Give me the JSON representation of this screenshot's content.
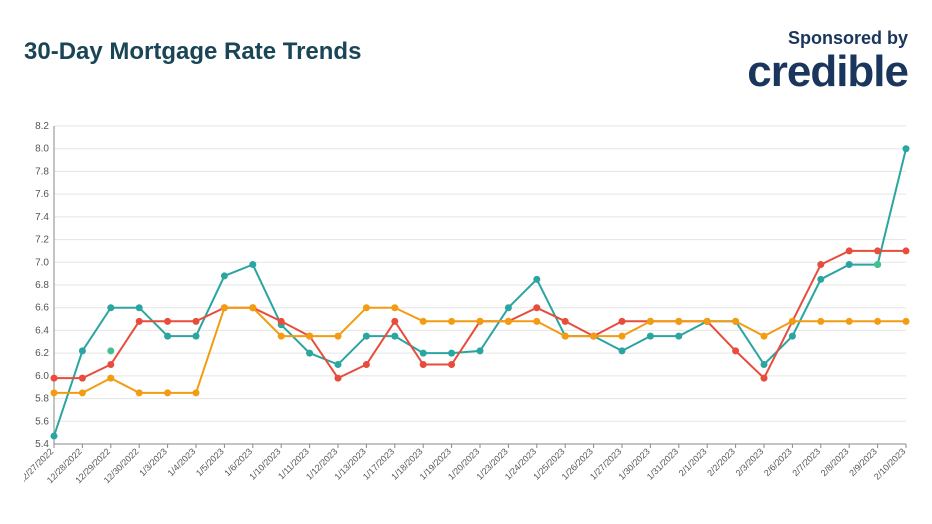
{
  "header": {
    "title": "30-Day Mortgage Rate Trends",
    "sponsor_label": "Sponsored by",
    "sponsor_logo": "credible"
  },
  "chart": {
    "type": "line",
    "background_color": "#ffffff",
    "grid_color": "#e5e5e5",
    "axis_color": "#888888",
    "title_color": "#1a4556",
    "title_fontsize": 24,
    "y_axis": {
      "min": 5.4,
      "max": 8.2,
      "ticks": [
        5.4,
        5.6,
        5.8,
        6.0,
        6.2,
        6.4,
        6.6,
        6.8,
        7.0,
        7.2,
        7.4,
        7.6,
        7.8,
        8.0,
        8.2
      ],
      "tick_fontsize": 10,
      "tick_color": "#555555"
    },
    "x_axis": {
      "categories": [
        "12/27/2022",
        "12/28/2022",
        "12/29/2022",
        "12/30/2022",
        "1/3/2023",
        "1/4/2023",
        "1/5/2023",
        "1/6/2023",
        "1/10/2023",
        "1/11/2023",
        "1/12/2023",
        "1/13/2023",
        "1/17/2023",
        "1/18/2023",
        "1/19/2023",
        "1/20/2023",
        "1/23/2023",
        "1/24/2023",
        "1/25/2023",
        "1/26/2023",
        "1/27/2023",
        "1/30/2023",
        "1/31/2023",
        "2/1/2023",
        "2/2/2023",
        "2/3/2023",
        "2/6/2023",
        "2/7/2023",
        "2/8/2023",
        "2/9/2023",
        "2/10/2023"
      ],
      "tick_fontsize": 9,
      "tick_color": "#555555",
      "label_rotation": -45
    },
    "series": [
      {
        "name": "series-teal",
        "color": "#2ba5a0",
        "line_width": 2,
        "marker": "circle",
        "marker_size": 3.5,
        "values": [
          5.47,
          6.22,
          6.6,
          6.6,
          6.35,
          6.35,
          6.88,
          6.98,
          6.45,
          6.2,
          6.1,
          6.35,
          6.35,
          6.2,
          6.2,
          6.22,
          6.6,
          6.85,
          6.35,
          6.35,
          6.22,
          6.35,
          6.35,
          6.48,
          6.48,
          6.1,
          6.35,
          6.85,
          6.98,
          6.98,
          8.0
        ]
      },
      {
        "name": "series-red",
        "color": "#e74c3c",
        "line_width": 2,
        "marker": "circle",
        "marker_size": 3.5,
        "values": [
          5.98,
          5.98,
          6.1,
          6.48,
          6.48,
          6.48,
          6.6,
          6.6,
          6.48,
          6.35,
          5.98,
          6.1,
          6.48,
          6.1,
          6.1,
          6.48,
          6.48,
          6.6,
          6.48,
          6.35,
          6.48,
          6.48,
          6.48,
          6.48,
          6.22,
          5.98,
          6.48,
          6.98,
          7.1,
          7.1,
          7.1
        ]
      },
      {
        "name": "series-orange",
        "color": "#f39c12",
        "line_width": 2,
        "marker": "circle",
        "marker_size": 3.5,
        "values": [
          5.85,
          5.85,
          5.98,
          5.85,
          5.85,
          5.85,
          6.6,
          6.6,
          6.35,
          6.35,
          6.35,
          6.6,
          6.6,
          6.48,
          6.48,
          6.48,
          6.48,
          6.48,
          6.35,
          6.35,
          6.35,
          6.48,
          6.48,
          6.48,
          6.48,
          6.35,
          6.48,
          6.48,
          6.48,
          6.48,
          6.48
        ]
      },
      {
        "name": "series-green",
        "color": "#43c18e",
        "line_width": 2,
        "marker": "circle",
        "marker_size": 3.5,
        "values": [
          null,
          null,
          6.22,
          null,
          null,
          null,
          null,
          null,
          null,
          null,
          null,
          null,
          null,
          null,
          null,
          null,
          null,
          null,
          null,
          null,
          null,
          null,
          null,
          null,
          null,
          null,
          null,
          null,
          null,
          6.98,
          null
        ]
      }
    ]
  }
}
